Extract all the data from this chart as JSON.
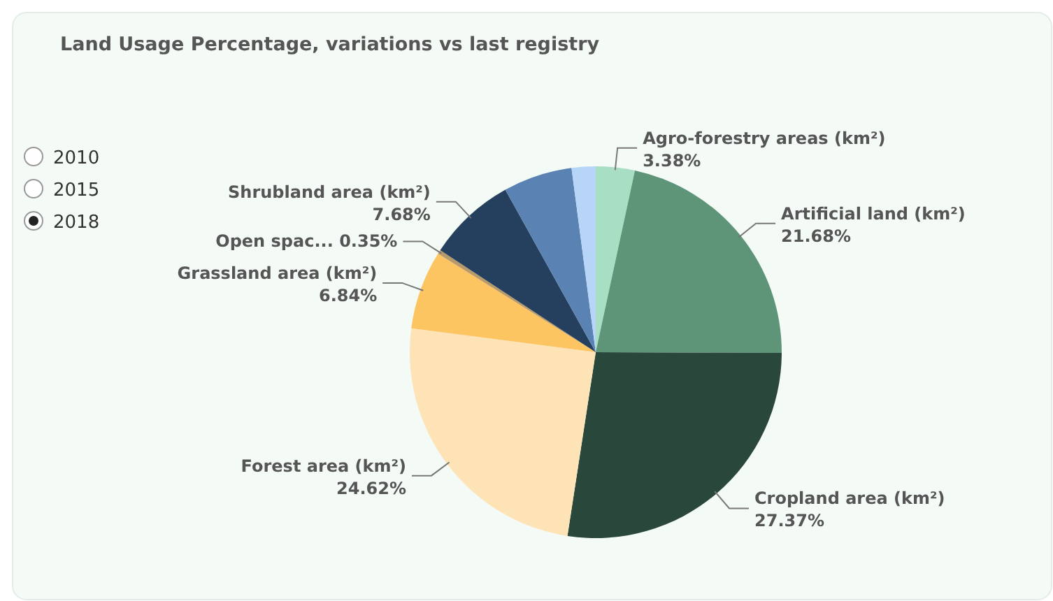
{
  "chart_data": {
    "type": "pie",
    "title": "Land Usage Percentage, variations vs last registry",
    "categories": [
      "Agro-forestry areas (km²)",
      "Artificial land (km²)",
      "Cropland area (km²)",
      "Forest area (km²)",
      "Grassland area (km²)",
      "Open spac...",
      "Shrubland area (km²)",
      null,
      null
    ],
    "values": [
      3.38,
      21.68,
      27.37,
      24.62,
      6.84,
      0.35,
      7.68,
      6.0,
      2.08
    ],
    "value_labels": [
      "3.38%",
      "21.68%",
      "27.37%",
      "24.62%",
      "6.84%",
      "0.35%",
      "7.68%",
      null,
      null
    ],
    "colors": [
      "#a8dfc4",
      "#5e9477",
      "#29473a",
      "#fde3b5",
      "#fdc561",
      "#b89a6a",
      "#25405f",
      "#5a83b3",
      "#b7d6f7"
    ],
    "annotations": [
      "2010",
      "2015",
      "2018"
    ]
  }
}
